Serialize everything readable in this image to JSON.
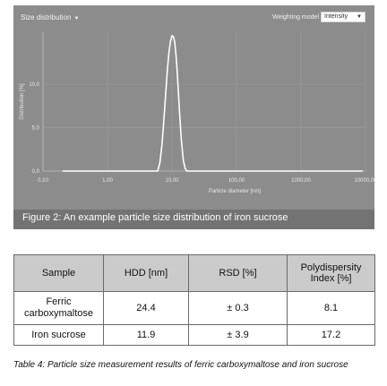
{
  "chart_data": {
    "type": "line",
    "title": "Size distribution",
    "xlabel": "Particle diameter [nm]",
    "ylabel": "Distribution [%]",
    "x_scale": "log",
    "xlim": [
      0.1,
      10000
    ],
    "ylim": [
      0,
      16
    ],
    "xticks": [
      "0,10",
      "1,00",
      "10,00",
      "100,00",
      "1000,00",
      "10000,00"
    ],
    "yticks": [
      "0,0",
      "5,0",
      "10,0"
    ],
    "weighting_model_label": "Weighting model",
    "weighting_model_value": "Intensity",
    "grid": true,
    "series": [
      {
        "x": [
          6.0,
          6.5,
          7.0,
          7.5,
          8.0,
          8.5,
          9.0,
          9.5,
          10.0,
          10.5,
          11.0,
          11.5,
          12.0,
          12.5,
          13.0,
          13.5,
          14.0,
          15.0,
          16.0,
          17.0
        ],
        "y": [
          0.0,
          1.0,
          3.1,
          6.0,
          9.0,
          11.8,
          13.8,
          15.0,
          15.6,
          15.5,
          14.9,
          13.5,
          11.6,
          9.4,
          7.2,
          5.2,
          3.5,
          1.2,
          0.3,
          0.0
        ]
      }
    ]
  },
  "figure_caption": "Figure 2: An example particle size distribution of iron sucrose",
  "table": {
    "headers": [
      "Sample",
      "HDD [nm]",
      "RSD [%]",
      "Polydispersity Index [%]"
    ],
    "rows": [
      [
        "Ferric carboxymaltose",
        "24.4",
        "± 0.3",
        "8.1"
      ],
      [
        "Iron sucrose",
        "11.9",
        "± 3.9",
        "17.2"
      ]
    ]
  },
  "table_caption": "Table 4: Particle size measurement results of ferric carboxymaltose and iron sucrose"
}
